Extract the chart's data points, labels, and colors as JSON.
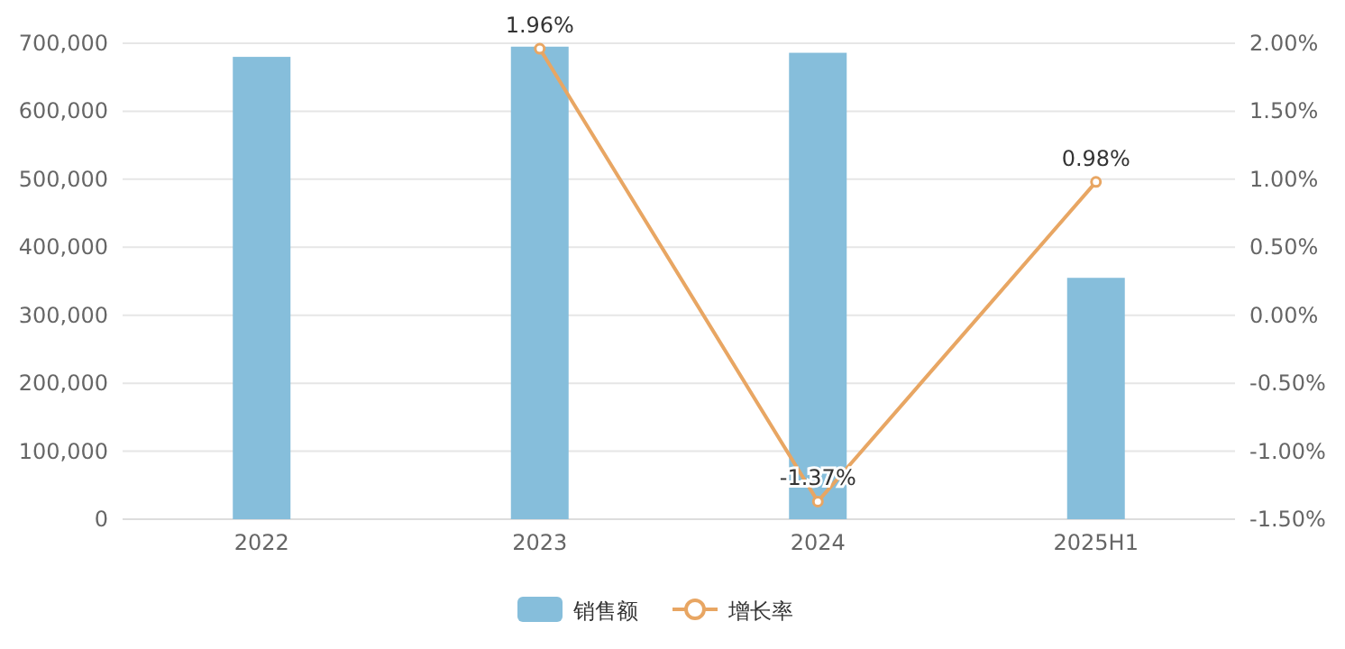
{
  "chart_data": {
    "type": "bar",
    "categories": [
      "2022",
      "2023",
      "2024",
      "2025H1"
    ],
    "series": [
      {
        "name": "销售额",
        "color": "#86bedb",
        "values": [
          680000,
          695000,
          686000,
          355000
        ]
      },
      {
        "name": "增长率",
        "type": "line",
        "axis": "y2",
        "color": "#e8a663",
        "marker": "circle",
        "values": [
          null,
          1.96,
          -1.37,
          0.98
        ],
        "value_labels": [
          null,
          "1.96%",
          "-1.37%",
          "0.98%"
        ]
      }
    ],
    "ylim": [
      0,
      700000
    ],
    "yticks": [
      0,
      {
        "value": 100000,
        "label": "100,000"
      },
      {
        "value": 200000,
        "label": "200,000"
      },
      {
        "value": 300000,
        "label": "300,000"
      },
      {
        "value": 400000,
        "label": "400,000"
      },
      {
        "value": 500000,
        "label": "500,000"
      },
      {
        "value": 600000,
        "label": "600,000"
      },
      {
        "value": 700000,
        "label": "700,000"
      }
    ],
    "y2lim": [
      -1.5,
      2
    ],
    "y2ticks": [
      {
        "value": -1.5,
        "label": "-1.50%"
      },
      {
        "value": -1,
        "label": "-1.00%"
      },
      {
        "value": -0.5,
        "label": "-0.50%"
      },
      {
        "value": 0,
        "label": "0.00%"
      },
      {
        "value": 0.5,
        "label": "0.50%"
      },
      {
        "value": 1,
        "label": "1.00%"
      },
      {
        "value": 1.5,
        "label": "1.50%"
      },
      {
        "value": 2,
        "label": "2.00%"
      }
    ],
    "grid": "y",
    "legend": "bottom"
  }
}
